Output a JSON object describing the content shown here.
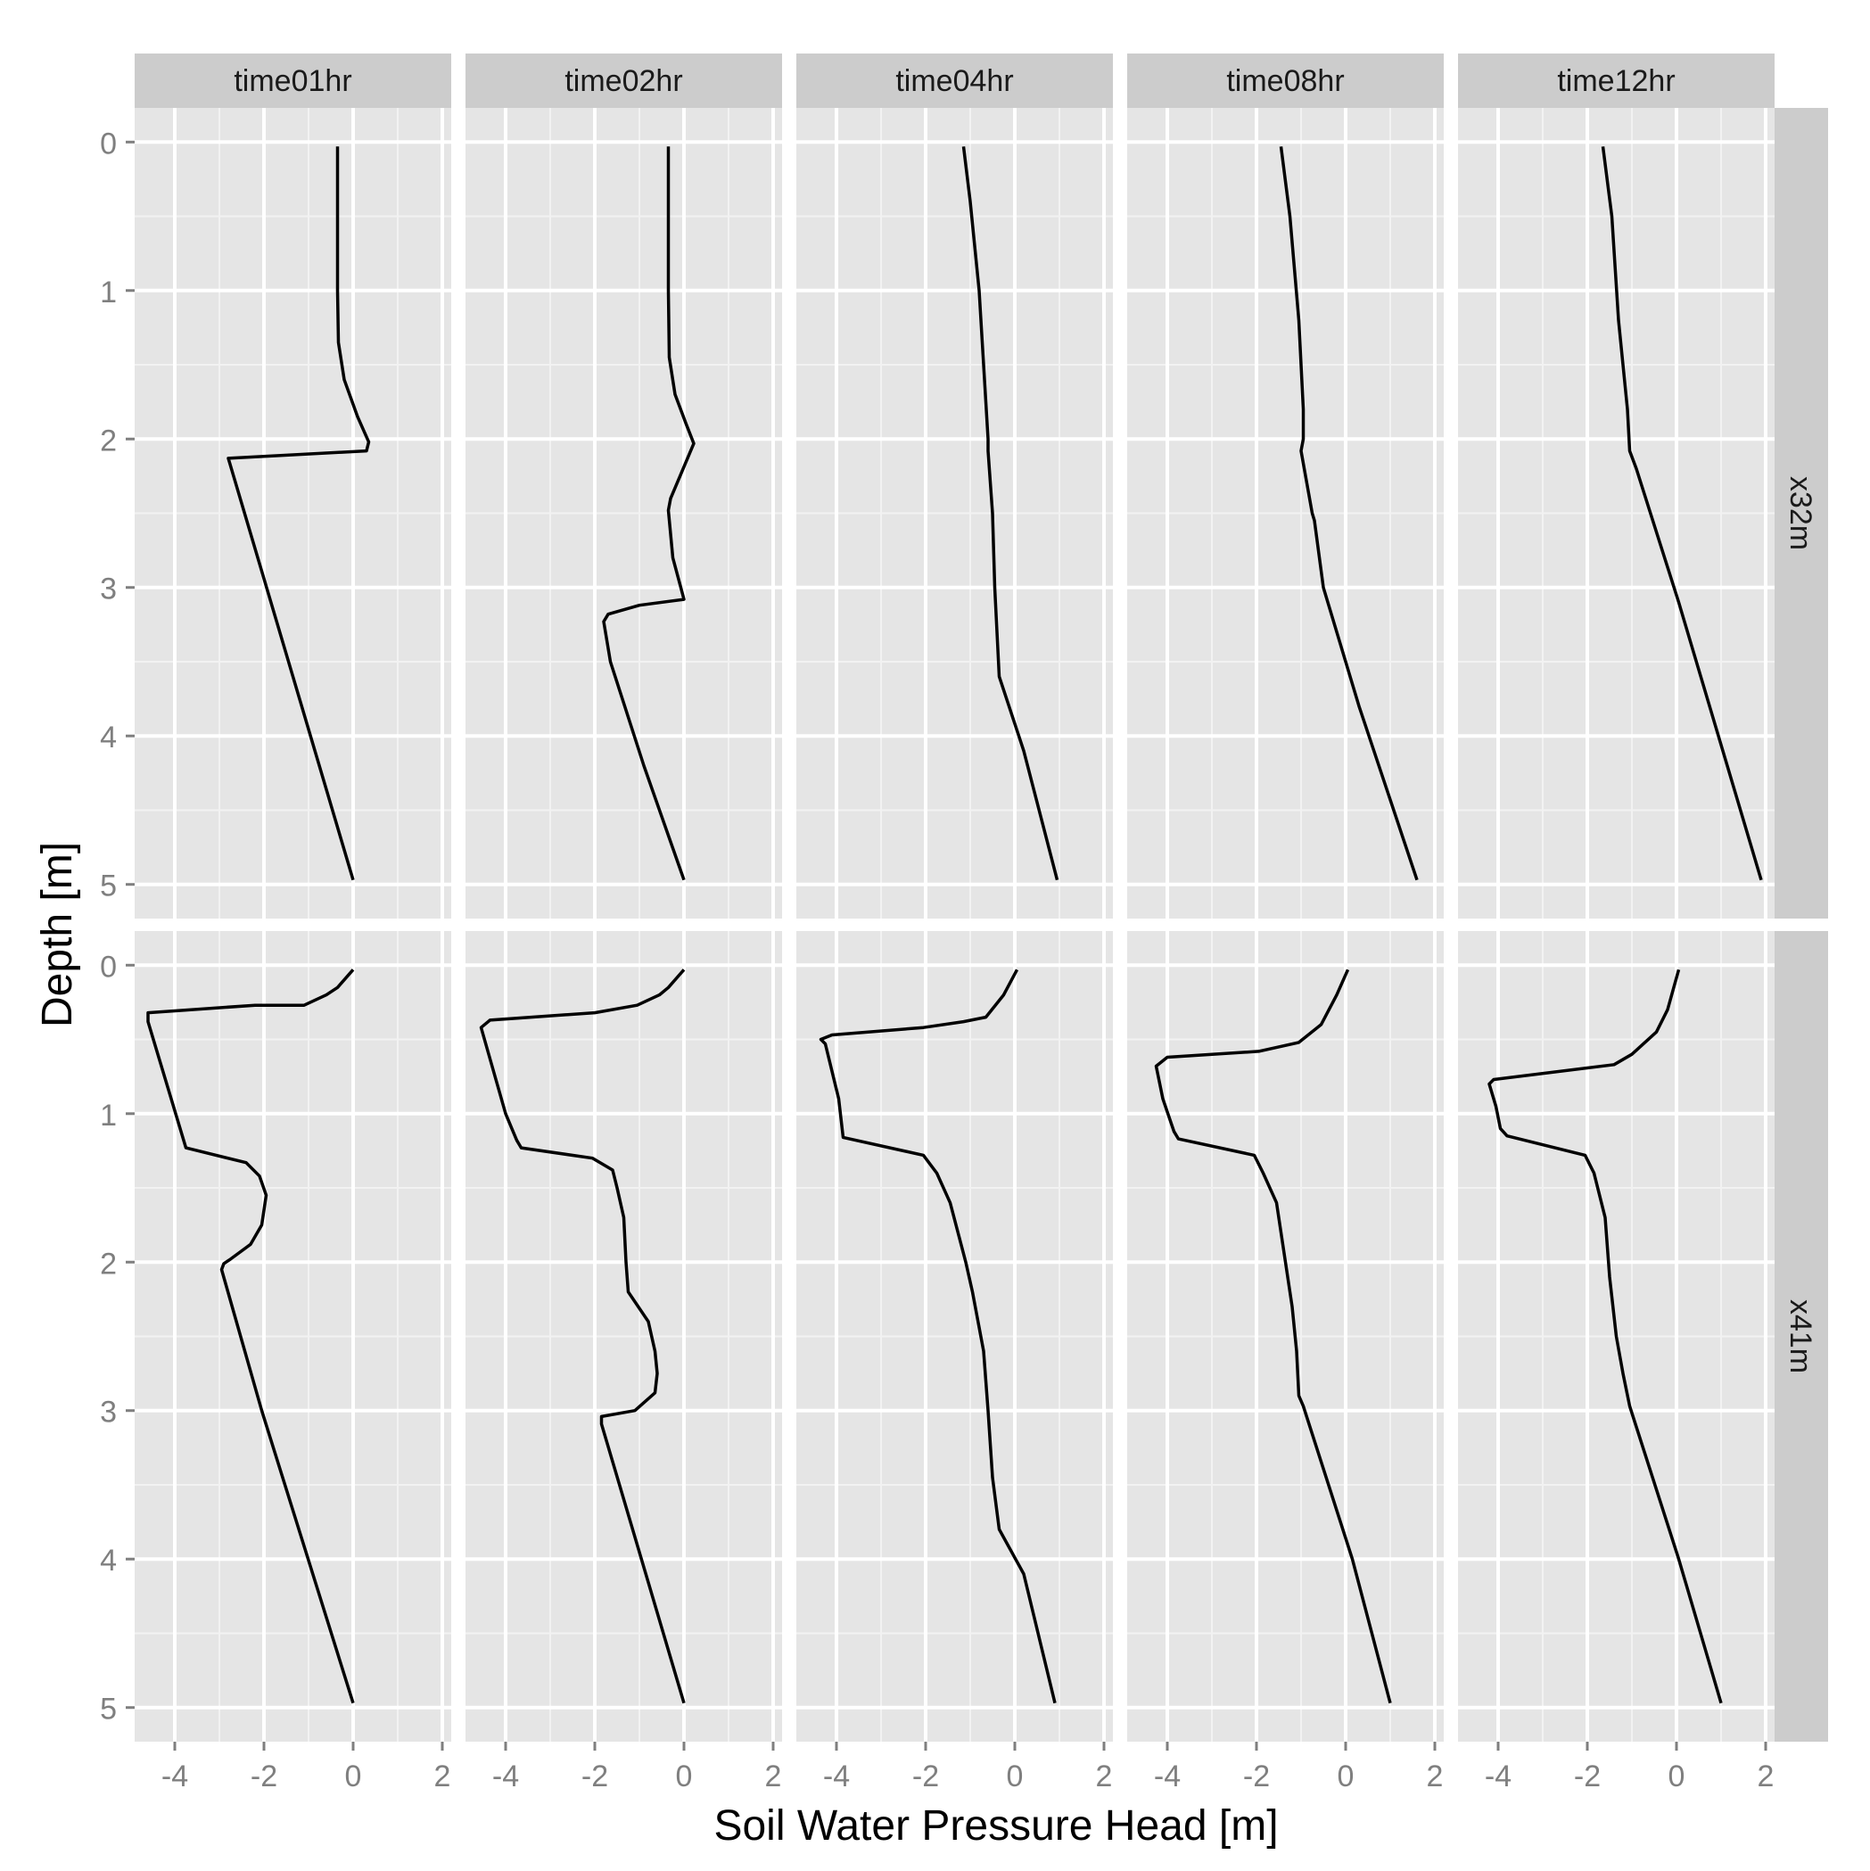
{
  "chart_data": {
    "type": "line",
    "xlabel": "Soil Water Pressure Head [m]",
    "ylabel": "Depth [m]",
    "xlim": [
      -4.9,
      2.2
    ],
    "ylim": [
      5.23,
      -0.23
    ],
    "x_ticks": [
      -4,
      -2,
      0,
      2
    ],
    "x_tick_labels": [
      "-4",
      "-2",
      "0",
      "2"
    ],
    "y_ticks": [
      0,
      1,
      2,
      3,
      4,
      5
    ],
    "y_tick_labels": [
      "0",
      "1",
      "2",
      "3",
      "4",
      "5"
    ],
    "y_reversed": true,
    "grid": true,
    "legend": "none",
    "columns": [
      "time01hr",
      "time02hr",
      "time04hr",
      "time08hr",
      "time12hr"
    ],
    "rows": [
      "x32m",
      "x41m"
    ],
    "panels": [
      {
        "row": "x32m",
        "col": "time01hr",
        "x": [
          -0.35,
          -0.35,
          -0.33,
          -0.2,
          0.1,
          0.35,
          0.3,
          -2.8,
          -2.75,
          0
        ],
        "y": [
          0.03,
          1.0,
          1.35,
          1.6,
          1.85,
          2.02,
          2.08,
          2.13,
          2.18,
          4.97
        ]
      },
      {
        "row": "x32m",
        "col": "time02hr",
        "x": [
          -0.35,
          -0.35,
          -0.33,
          -0.2,
          0.05,
          0.22,
          -0.3,
          -0.35,
          -0.25,
          0,
          -1,
          -1.7,
          -1.8,
          -1.65,
          -0.9,
          0
        ],
        "y": [
          0.03,
          1.0,
          1.45,
          1.7,
          1.9,
          2.03,
          2.4,
          2.48,
          2.8,
          3.08,
          3.12,
          3.18,
          3.23,
          3.5,
          4.2,
          4.97
        ]
      },
      {
        "row": "x32m",
        "col": "time04hr",
        "x": [
          -1.15,
          -1.0,
          -0.8,
          -0.7,
          -0.6,
          -0.6,
          -0.5,
          -0.45,
          -0.4,
          -0.35,
          0.2,
          0.95
        ],
        "y": [
          0.03,
          0.4,
          1.0,
          1.5,
          2.0,
          2.08,
          2.5,
          3.0,
          3.3,
          3.6,
          4.1,
          4.97
        ]
      },
      {
        "row": "x32m",
        "col": "time08hr",
        "x": [
          -1.45,
          -1.25,
          -1.05,
          -0.95,
          -0.95,
          -1.0,
          -0.75,
          -0.7,
          -0.5,
          0.3,
          1.6
        ],
        "y": [
          0.03,
          0.5,
          1.2,
          1.8,
          2.0,
          2.08,
          2.5,
          2.55,
          3.0,
          3.8,
          4.97
        ]
      },
      {
        "row": "x32m",
        "col": "time12hr",
        "x": [
          -1.65,
          -1.45,
          -1.3,
          -1.1,
          -1.05,
          -0.9,
          0.05,
          1.9
        ],
        "y": [
          0.03,
          0.5,
          1.2,
          1.8,
          2.08,
          2.2,
          3.1,
          4.97
        ]
      },
      {
        "row": "x41m",
        "col": "time01hr",
        "x": [
          0,
          -0.35,
          -0.6,
          -1.1,
          -2.2,
          -4.6,
          -4.6,
          -3.75,
          -2.4,
          -2.1,
          -1.95,
          -2.05,
          -2.3,
          -2.75,
          -2.9,
          -2.95,
          -2.05,
          0
        ],
        "y": [
          0.03,
          0.15,
          0.2,
          0.27,
          0.27,
          0.32,
          0.38,
          1.23,
          1.33,
          1.42,
          1.55,
          1.75,
          1.88,
          1.98,
          2.01,
          2.05,
          3.0,
          4.97
        ]
      },
      {
        "row": "x41m",
        "col": "time02hr",
        "x": [
          0,
          -0.35,
          -0.55,
          -1.05,
          -2.0,
          -4.35,
          -4.55,
          -4.0,
          -3.75,
          -3.65,
          -2.05,
          -1.6,
          -1.5,
          -1.35,
          -1.3,
          -1.25,
          -0.8,
          -0.65,
          -0.6,
          -0.65,
          -1.1,
          -1.85,
          -1.85,
          0
        ],
        "y": [
          0.03,
          0.15,
          0.2,
          0.27,
          0.32,
          0.37,
          0.42,
          1.0,
          1.18,
          1.23,
          1.3,
          1.38,
          1.5,
          1.7,
          2.0,
          2.2,
          2.4,
          2.6,
          2.75,
          2.88,
          3.0,
          3.04,
          3.09,
          4.97
        ]
      },
      {
        "row": "x41m",
        "col": "time04hr",
        "x": [
          0.05,
          -0.25,
          -0.65,
          -1.15,
          -2.05,
          -4.1,
          -4.35,
          -4.25,
          -3.95,
          -3.85,
          -2.05,
          -1.75,
          -1.45,
          -1.1,
          -0.95,
          -0.7,
          -0.65,
          -0.6,
          -0.5,
          -0.35,
          0.2,
          0.9
        ],
        "y": [
          0.03,
          0.2,
          0.35,
          0.38,
          0.42,
          0.47,
          0.5,
          0.53,
          0.9,
          1.16,
          1.28,
          1.4,
          1.6,
          2.0,
          2.2,
          2.6,
          2.8,
          3.0,
          3.45,
          3.8,
          4.1,
          4.97
        ]
      },
      {
        "row": "x41m",
        "col": "time08hr",
        "x": [
          0.05,
          -0.2,
          -0.55,
          -1.05,
          -1.95,
          -4.0,
          -4.25,
          -4.1,
          -3.85,
          -3.75,
          -2.05,
          -1.85,
          -1.55,
          -1.35,
          -1.2,
          -1.1,
          -1.05,
          -0.95,
          0.15,
          1.0
        ],
        "y": [
          0.03,
          0.2,
          0.4,
          0.52,
          0.58,
          0.62,
          0.68,
          0.9,
          1.12,
          1.17,
          1.28,
          1.4,
          1.6,
          2.0,
          2.3,
          2.6,
          2.9,
          2.97,
          4.0,
          4.97
        ]
      },
      {
        "row": "x41m",
        "col": "time12hr",
        "x": [
          0.05,
          -0.2,
          -0.45,
          -1.0,
          -1.4,
          -4.1,
          -4.2,
          -4.05,
          -3.95,
          -3.8,
          -2.05,
          -1.85,
          -1.6,
          -1.5,
          -1.35,
          -1.2,
          -1.05,
          0.05,
          1.0
        ],
        "y": [
          0.03,
          0.3,
          0.45,
          0.6,
          0.67,
          0.77,
          0.8,
          0.95,
          1.1,
          1.15,
          1.28,
          1.4,
          1.7,
          2.1,
          2.5,
          2.75,
          2.97,
          4.0,
          4.97
        ]
      }
    ]
  }
}
